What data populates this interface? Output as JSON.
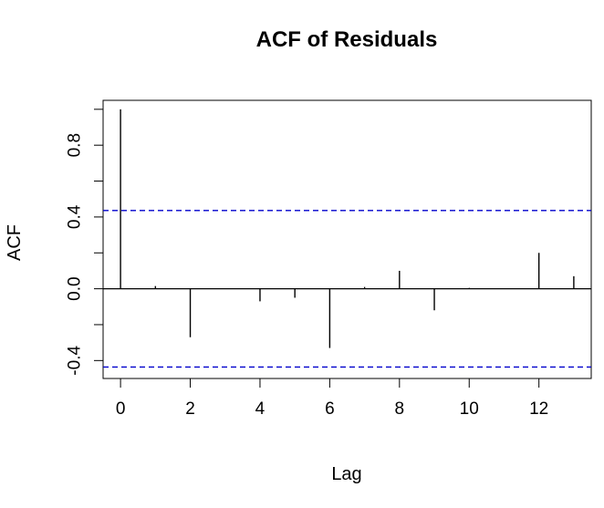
{
  "chart_data": {
    "type": "bar",
    "title": "ACF of Residuals",
    "xlabel": "Lag",
    "ylabel": "ACF",
    "x": [
      0,
      1,
      2,
      3,
      4,
      5,
      6,
      7,
      8,
      9,
      10,
      11,
      12,
      13
    ],
    "values": [
      1.0,
      0.015,
      -0.27,
      0.0,
      -0.07,
      -0.05,
      -0.33,
      0.01,
      0.1,
      -0.12,
      0.005,
      0.0,
      0.2,
      0.07
    ],
    "xlim": [
      -0.5,
      13.5
    ],
    "ylim": [
      -0.5,
      1.05
    ],
    "xticks": [
      0,
      2,
      4,
      6,
      8,
      10,
      12
    ],
    "xtick_labels": [
      "0",
      "2",
      "4",
      "6",
      "8",
      "10",
      "12"
    ],
    "yticks": [
      -0.4,
      -0.2,
      0.0,
      0.2,
      0.4,
      0.6,
      0.8,
      1.0
    ],
    "ytick_labels": [
      {
        "value": -0.4,
        "label": "-0.4"
      },
      {
        "value": 0.0,
        "label": "0.0"
      },
      {
        "value": 0.4,
        "label": "0.4"
      },
      {
        "value": 0.8,
        "label": "0.8"
      }
    ],
    "confidence_bounds": [
      0.436,
      -0.436
    ],
    "confidence_color": "#0000cc",
    "bar_color": "#000000",
    "grid": false,
    "legend": "none"
  }
}
